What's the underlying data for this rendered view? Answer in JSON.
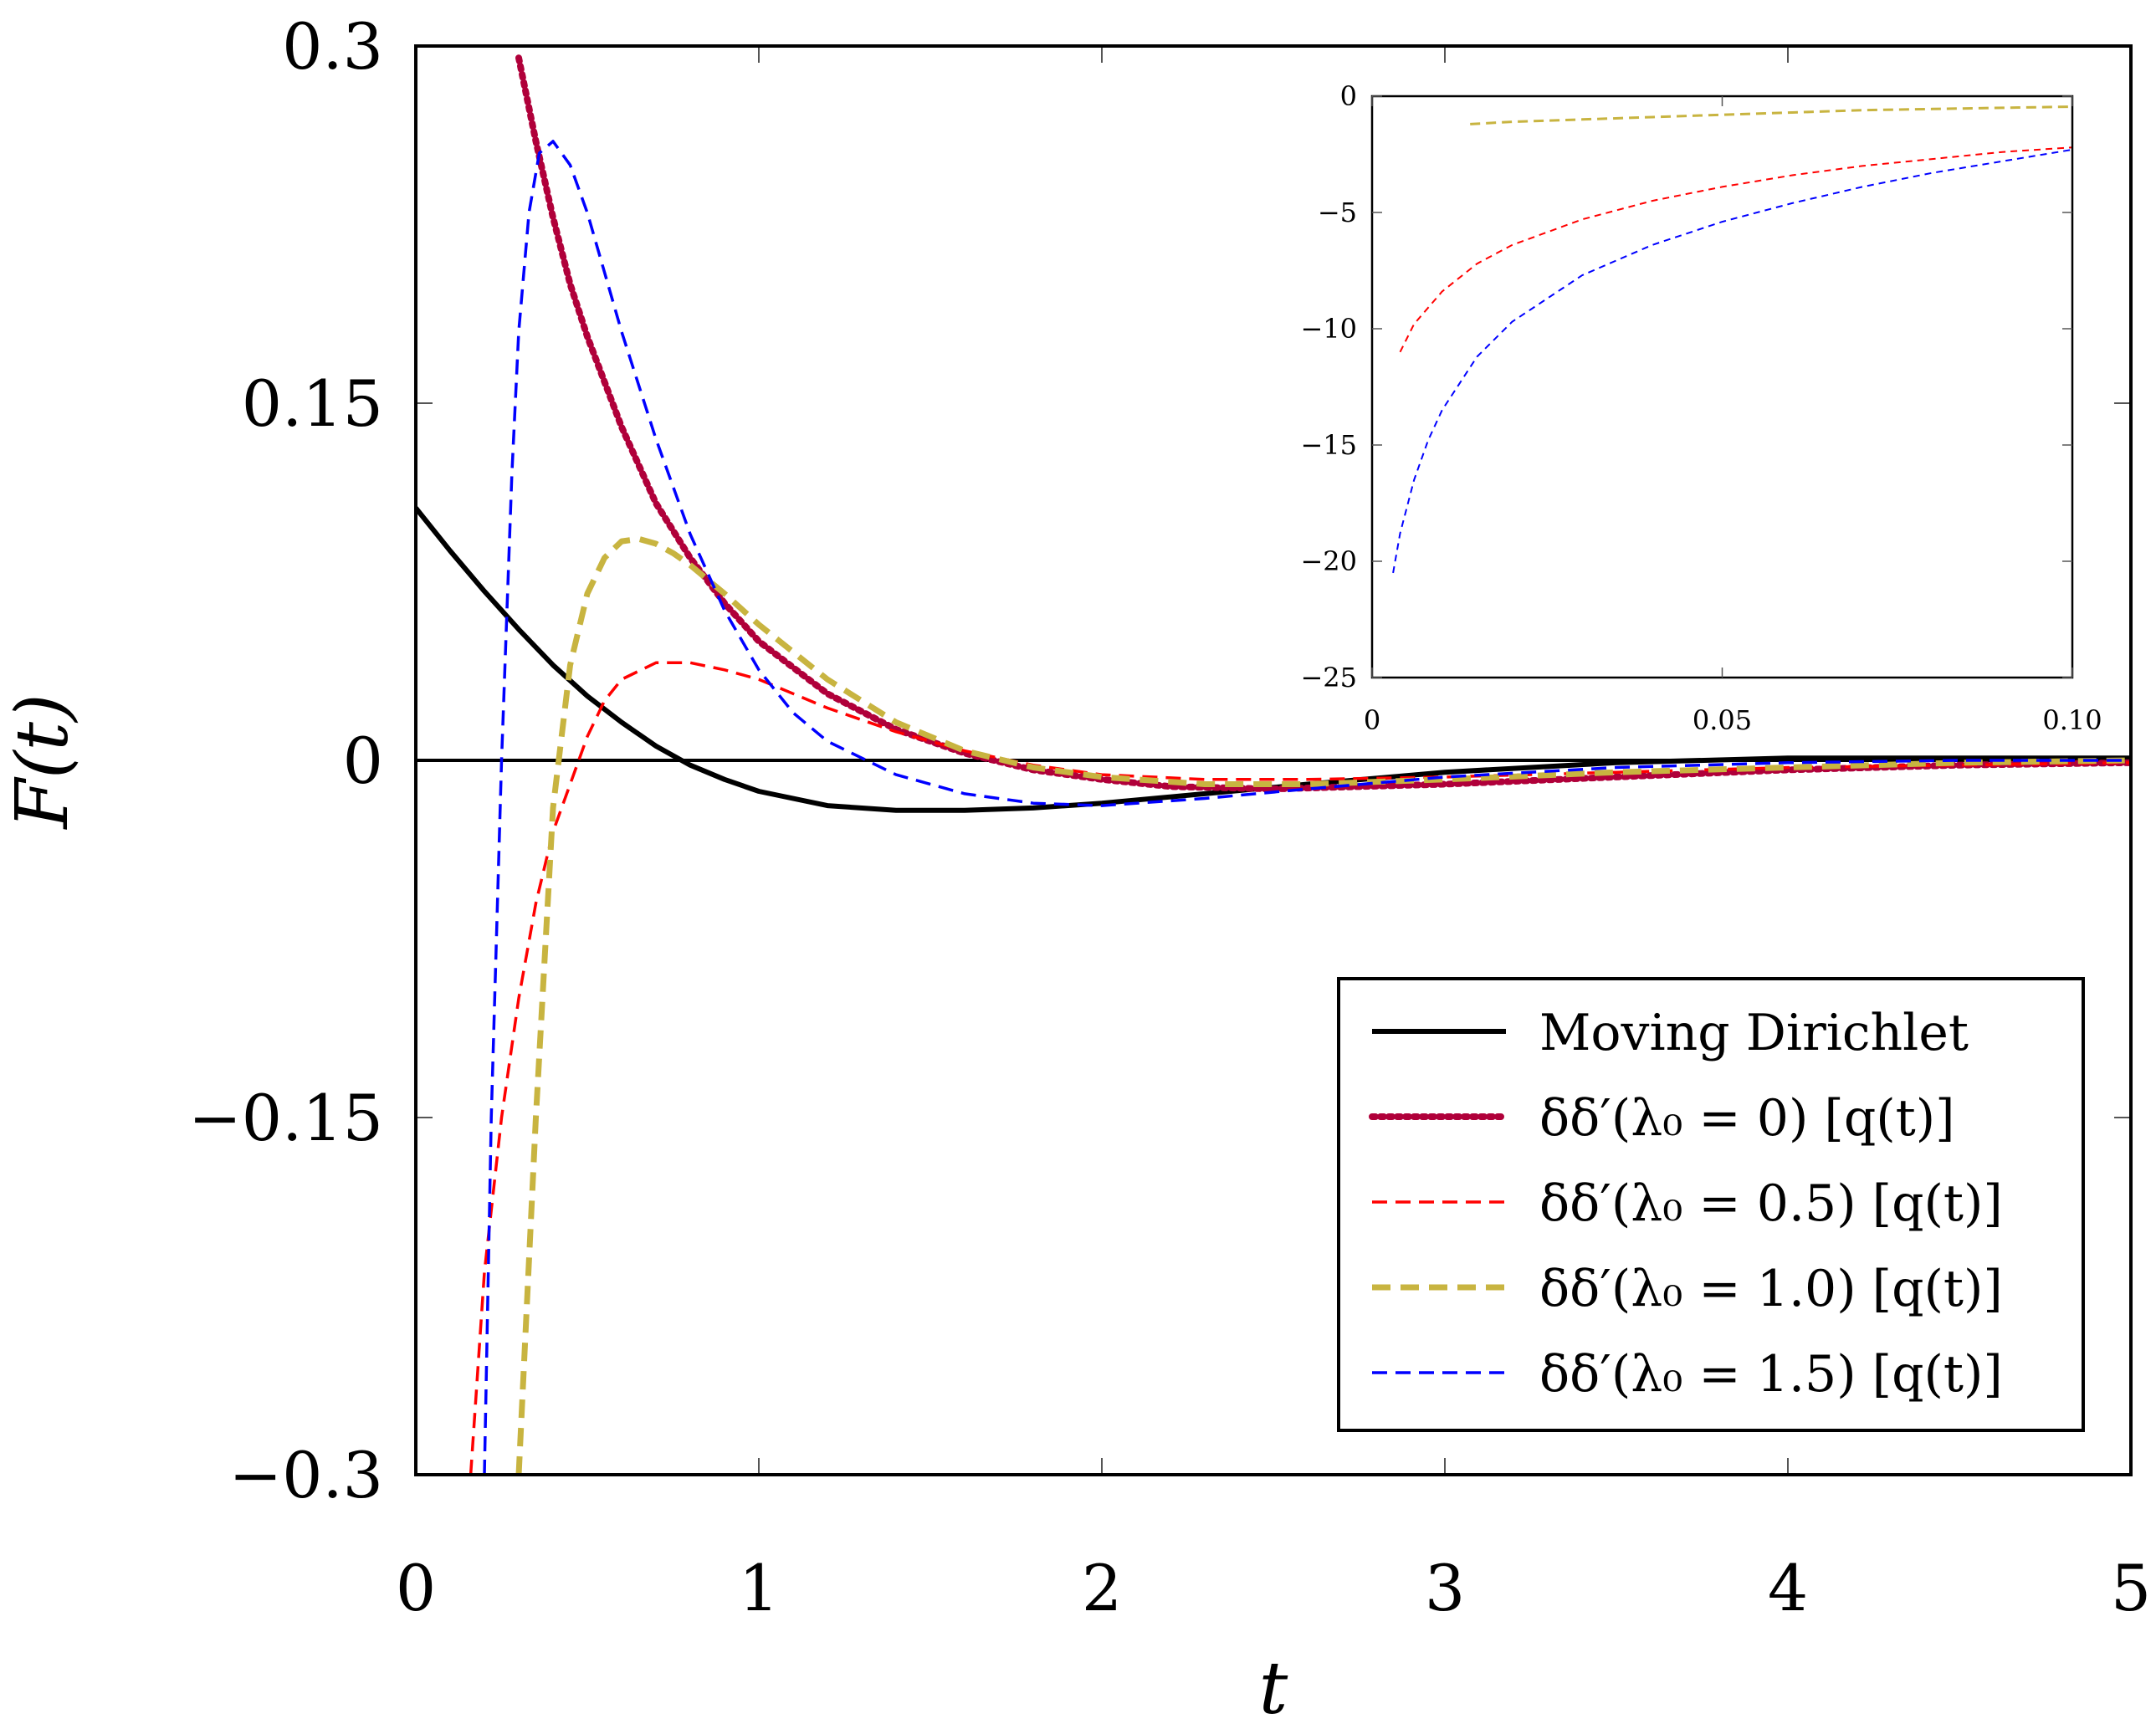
{
  "chart_data": [
    {
      "type": "line",
      "xlabel": "t",
      "ylabel": "F(t)",
      "xlim": [
        0,
        5
      ],
      "ylim": [
        -0.3,
        0.3
      ],
      "xticks": [
        0,
        1,
        2,
        3,
        4,
        5
      ],
      "xtick_labels": [
        "0",
        "1",
        "2",
        "3",
        "4",
        "5"
      ],
      "yticks": [
        0.3,
        0.15,
        0,
        -0.15,
        -0.3
      ],
      "ytick_labels": [
        "0.3",
        "0.15",
        "0",
        "−0.15",
        "−0.3"
      ],
      "zero_line": true,
      "legend_position": "bottom-right",
      "series": [
        {
          "name": "Moving Dirichlet",
          "color": "#000000",
          "style": "solid",
          "x": [
            0,
            0.1,
            0.2,
            0.3,
            0.4,
            0.5,
            0.6,
            0.7,
            0.8,
            0.9,
            1.0,
            1.2,
            1.4,
            1.6,
            1.8,
            2.0,
            2.3,
            2.6,
            3.0,
            3.5,
            4.0,
            4.5,
            5.0
          ],
          "y": [
            0.106,
            0.088,
            0.071,
            0.055,
            0.04,
            0.027,
            0.016,
            0.006,
            -0.002,
            -0.008,
            -0.013,
            -0.019,
            -0.021,
            -0.021,
            -0.02,
            -0.018,
            -0.014,
            -0.01,
            -0.005,
            -0.001,
            0.001,
            0.001,
            0.001
          ]
        },
        {
          "name": "δδ′(λ₀ = 0) [q(t)]",
          "color": "#b0003a",
          "style": "dotted",
          "x": [
            0.3,
            0.35,
            0.4,
            0.45,
            0.5,
            0.6,
            0.7,
            0.8,
            0.9,
            1.0,
            1.2,
            1.4,
            1.6,
            1.8,
            2.0,
            2.2,
            2.5,
            3.0,
            3.5,
            4.0,
            4.5,
            5.0
          ],
          "y": [
            0.295,
            0.26,
            0.228,
            0.2,
            0.178,
            0.14,
            0.108,
            0.085,
            0.066,
            0.05,
            0.028,
            0.013,
            0.003,
            -0.004,
            -0.008,
            -0.011,
            -0.012,
            -0.01,
            -0.007,
            -0.004,
            -0.002,
            -0.001
          ]
        },
        {
          "name": "δδ′(λ₀ = 0.5) [q(t)]",
          "color": "#ff0000",
          "style": "dashed",
          "x": [
            0.16,
            0.2,
            0.25,
            0.3,
            0.35,
            0.4,
            0.45,
            0.5,
            0.55,
            0.6,
            0.7,
            0.8,
            0.9,
            1.0,
            1.2,
            1.4,
            1.6,
            1.8,
            2.0,
            2.3,
            2.6,
            3.0,
            3.5,
            4.0,
            4.5,
            5.0
          ],
          "y": [
            -0.3,
            -0.215,
            -0.15,
            -0.1,
            -0.06,
            -0.03,
            -0.01,
            0.01,
            0.025,
            0.034,
            0.041,
            0.041,
            0.038,
            0.034,
            0.022,
            0.012,
            0.004,
            -0.002,
            -0.006,
            -0.008,
            -0.008,
            -0.007,
            -0.005,
            -0.003,
            -0.002,
            -0.001
          ]
        },
        {
          "name": "δδ′(λ₀ = 1.0) [q(t)]",
          "color": "#c8b440",
          "style": "dashed-thick",
          "x": [
            0.3,
            0.35,
            0.4,
            0.45,
            0.5,
            0.55,
            0.6,
            0.65,
            0.7,
            0.75,
            0.8,
            0.9,
            1.0,
            1.2,
            1.4,
            1.6,
            1.8,
            2.0,
            2.3,
            2.6,
            3.0,
            3.5,
            4.0,
            4.5,
            5.0
          ],
          "y": [
            -0.3,
            -0.15,
            -0.02,
            0.04,
            0.07,
            0.085,
            0.092,
            0.093,
            0.091,
            0.087,
            0.082,
            0.07,
            0.057,
            0.034,
            0.016,
            0.004,
            -0.003,
            -0.007,
            -0.01,
            -0.01,
            -0.008,
            -0.005,
            -0.003,
            -0.001,
            0.0
          ]
        },
        {
          "name": "δδ′(λ₀ = 1.5) [q(t)]",
          "color": "#0000ff",
          "style": "dashed",
          "x": [
            0.2,
            0.22,
            0.25,
            0.28,
            0.3,
            0.33,
            0.36,
            0.4,
            0.45,
            0.5,
            0.55,
            0.6,
            0.7,
            0.8,
            0.9,
            1.0,
            1.1,
            1.2,
            1.4,
            1.6,
            1.8,
            2.0,
            2.3,
            2.6,
            3.0,
            3.5,
            4.0,
            4.5,
            5.0
          ],
          "y": [
            -0.3,
            -0.15,
            0.0,
            0.12,
            0.18,
            0.23,
            0.255,
            0.26,
            0.25,
            0.23,
            0.205,
            0.18,
            0.135,
            0.095,
            0.063,
            0.038,
            0.02,
            0.008,
            -0.006,
            -0.014,
            -0.018,
            -0.019,
            -0.016,
            -0.012,
            -0.007,
            -0.003,
            -0.001,
            0.0,
            0.0
          ]
        }
      ]
    },
    {
      "type": "line",
      "title": "",
      "xlim": [
        0,
        0.1
      ],
      "ylim": [
        -25,
        0
      ],
      "xticks": [
        0,
        0.05,
        0.1
      ],
      "xtick_labels": [
        "0",
        "0.05",
        "0.10"
      ],
      "yticks": [
        0,
        -5,
        -10,
        -15,
        -20,
        -25
      ],
      "ytick_labels": [
        "0",
        "−5",
        "−10",
        "−15",
        "−20",
        "−25"
      ],
      "series": [
        {
          "name": "λ₀ = 0.5",
          "color": "#ff0000",
          "style": "dashed",
          "x": [
            0.004,
            0.006,
            0.01,
            0.015,
            0.02,
            0.03,
            0.04,
            0.05,
            0.06,
            0.07,
            0.08,
            0.09,
            0.1
          ],
          "y": [
            -11,
            -9.8,
            -8.4,
            -7.2,
            -6.4,
            -5.3,
            -4.5,
            -3.9,
            -3.4,
            -3.0,
            -2.7,
            -2.4,
            -2.2
          ]
        },
        {
          "name": "λ₀ = 1.0",
          "color": "#c8b440",
          "style": "dashed",
          "x": [
            0.014,
            0.02,
            0.03,
            0.04,
            0.05,
            0.06,
            0.07,
            0.08,
            0.09,
            0.1
          ],
          "y": [
            -1.2,
            -1.1,
            -1.0,
            -0.9,
            -0.8,
            -0.7,
            -0.6,
            -0.55,
            -0.5,
            -0.45
          ]
        },
        {
          "name": "λ₀ = 1.5",
          "color": "#0000ff",
          "style": "dashed",
          "x": [
            0.003,
            0.004,
            0.006,
            0.008,
            0.01,
            0.015,
            0.02,
            0.03,
            0.04,
            0.05,
            0.06,
            0.07,
            0.08,
            0.09,
            0.1
          ],
          "y": [
            -20.5,
            -18.8,
            -16.5,
            -14.8,
            -13.5,
            -11.2,
            -9.7,
            -7.7,
            -6.4,
            -5.4,
            -4.6,
            -3.9,
            -3.3,
            -2.8,
            -2.3
          ]
        }
      ]
    }
  ],
  "legend": [
    {
      "label": "Moving Dirichlet",
      "color": "#000000",
      "style": "solid"
    },
    {
      "label": "δδ′(λ₀ = 0) [q(t)]",
      "color": "#b0003a",
      "style": "dotted"
    },
    {
      "label": "δδ′(λ₀ = 0.5) [q(t)]",
      "color": "#ff0000",
      "style": "dashed"
    },
    {
      "label": "δδ′(λ₀ = 1.0) [q(t)]",
      "color": "#c8b440",
      "style": "dashed-thick"
    },
    {
      "label": "δδ′(λ₀ = 1.5) [q(t)]",
      "color": "#0000ff",
      "style": "dashed"
    }
  ]
}
